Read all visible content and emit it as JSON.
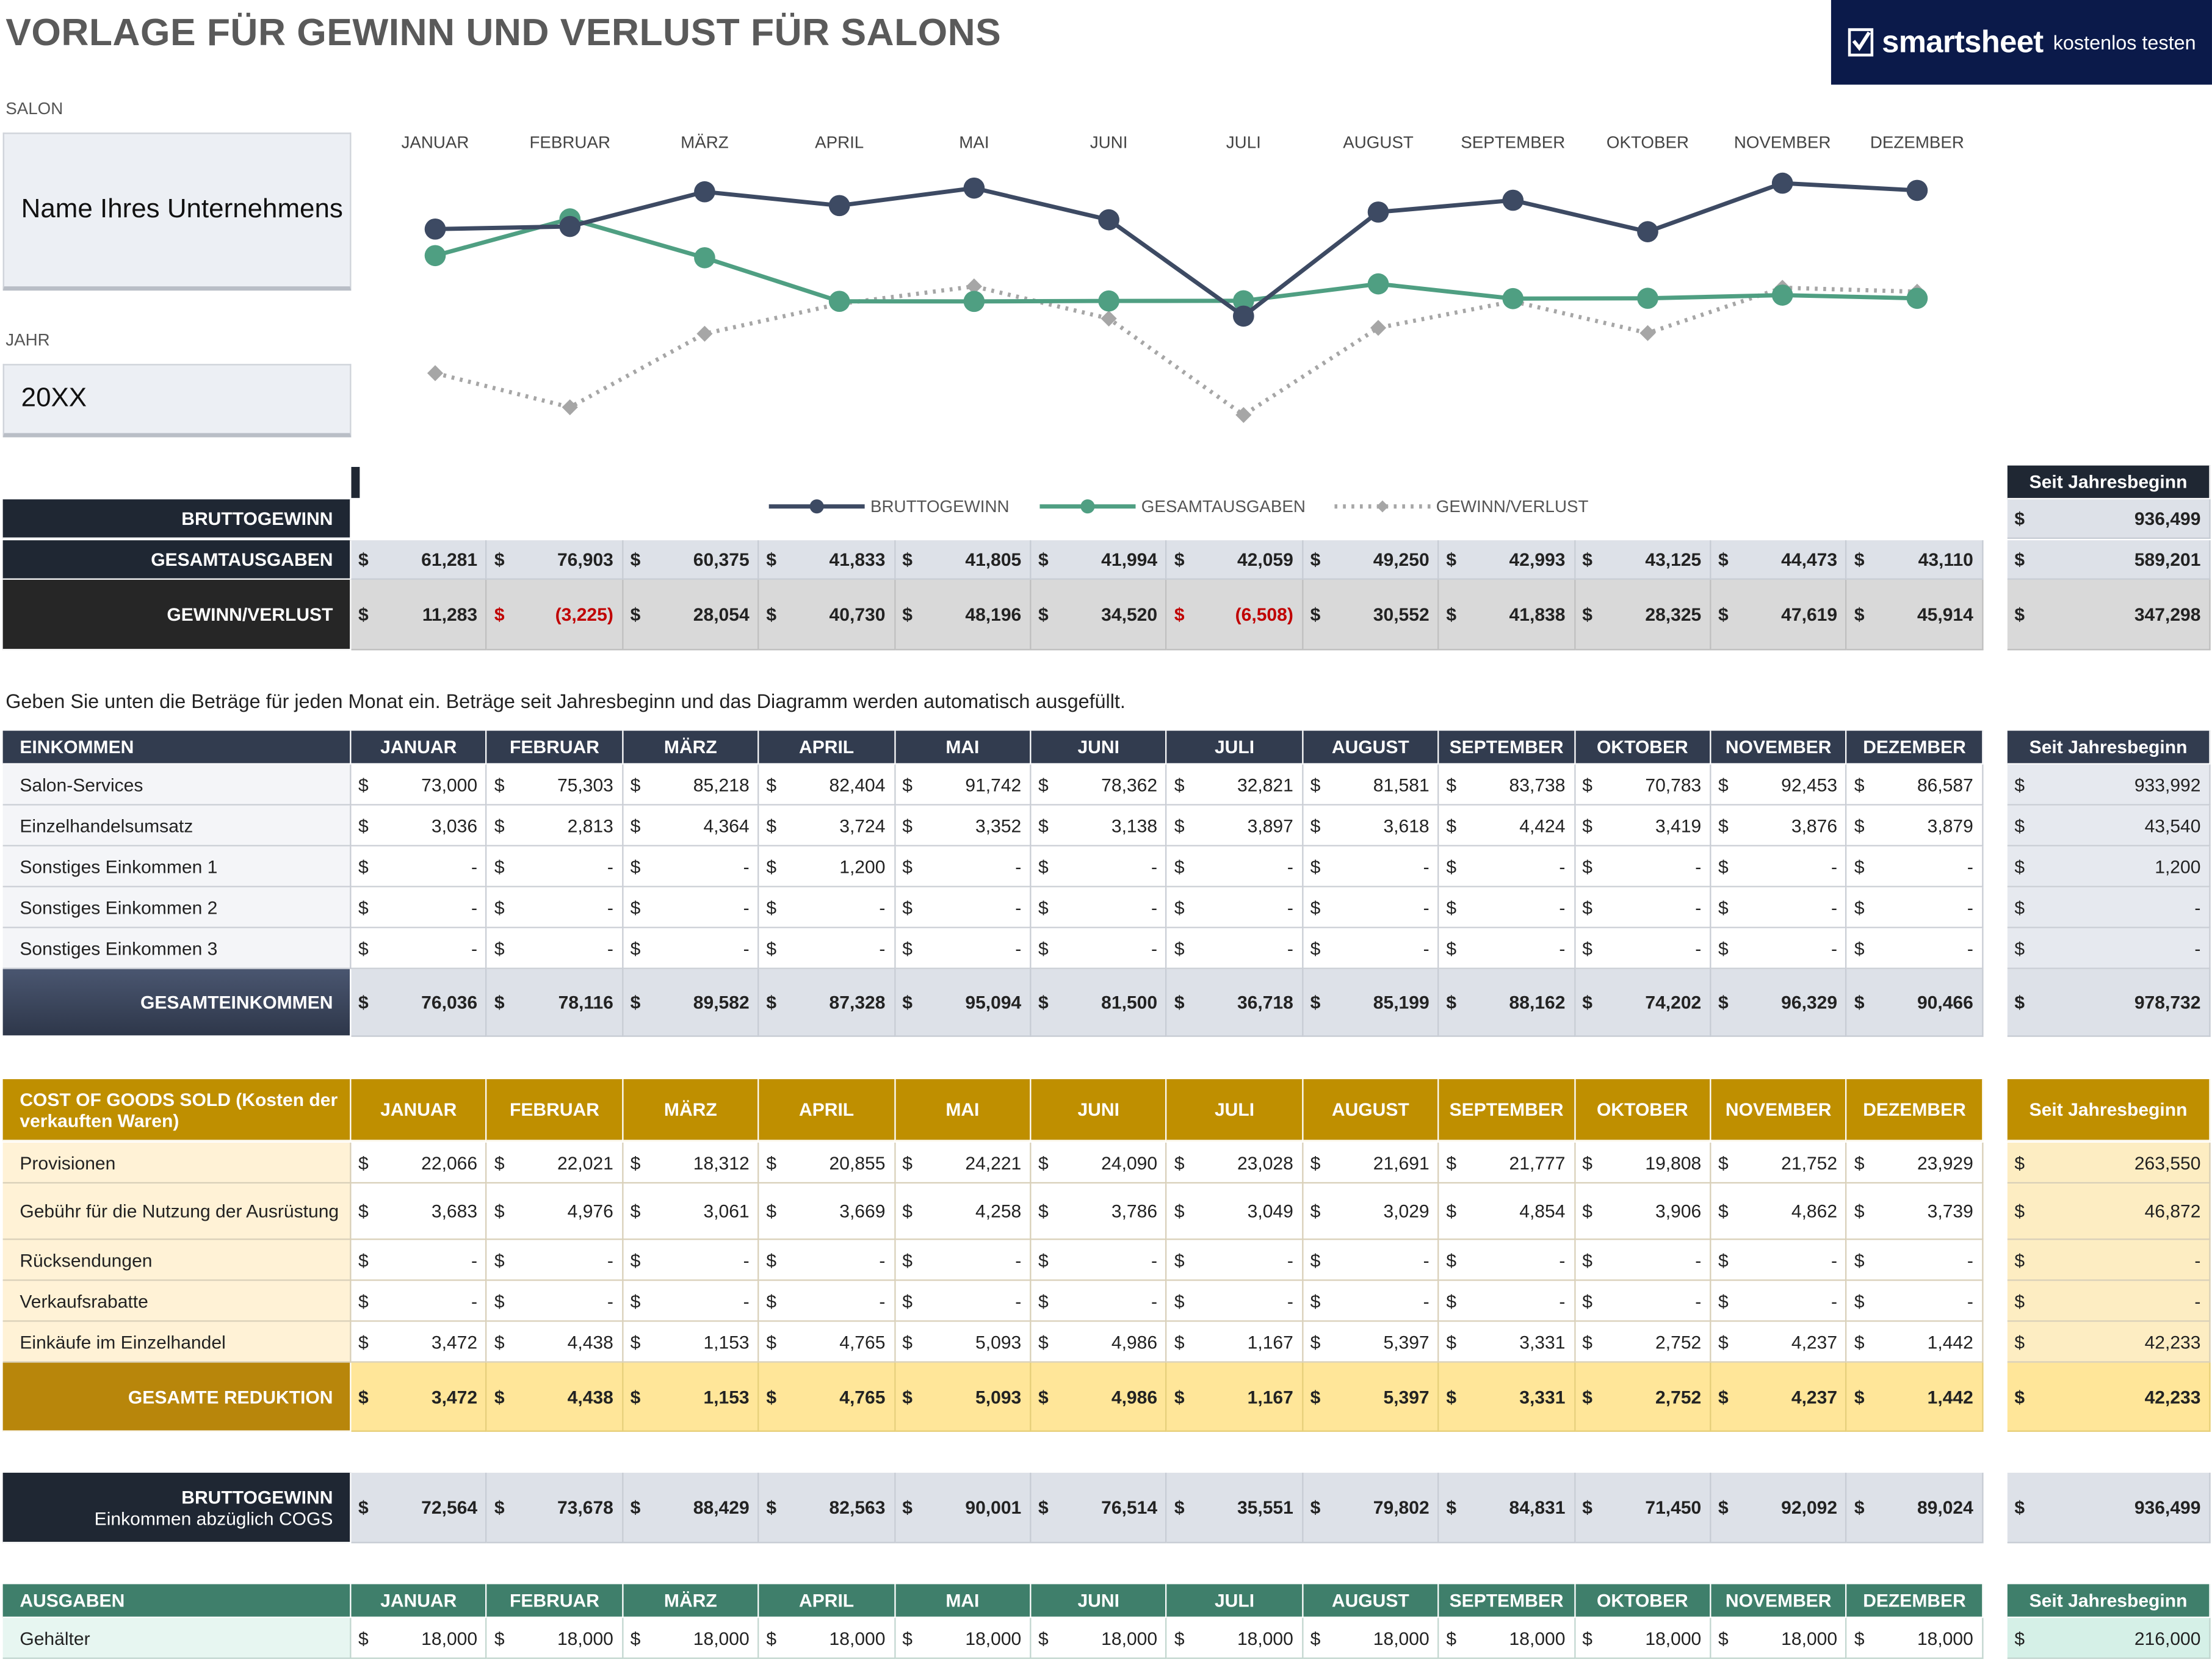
{
  "header": {
    "title": "VORLAGE FÜR GEWINN UND VERLUST FÜR SALONS",
    "brand_name": "smartsheet",
    "brand_cta": "kostenlos testen"
  },
  "fields": {
    "salon_label": "SALON",
    "salon_value": "Name Ihres Unternehmens",
    "year_label": "JAHR",
    "year_value": "20XX"
  },
  "months": [
    "JANUAR",
    "FEBRUAR",
    "MÄRZ",
    "APRIL",
    "MAI",
    "JUNI",
    "JULI",
    "AUGUST",
    "SEPTEMBER",
    "OKTOBER",
    "NOVEMBER",
    "DEZEMBER"
  ],
  "ytd_label": "Seit Jahresbeginn",
  "chart_data": {
    "type": "line",
    "categories": [
      "JANUAR",
      "FEBRUAR",
      "MÄRZ",
      "APRIL",
      "MAI",
      "JUNI",
      "JULI",
      "AUGUST",
      "SEPTEMBER",
      "OKTOBER",
      "NOVEMBER",
      "DEZEMBER"
    ],
    "series": [
      {
        "name": "BRUTTOGEWINN",
        "color": "#3d4a63",
        "style": "solid",
        "values": [
          72564,
          73678,
          88429,
          82563,
          90001,
          76514,
          35551,
          79802,
          84831,
          71450,
          92092,
          89024
        ]
      },
      {
        "name": "GESAMTAUSGABEN",
        "color": "#4f9f82",
        "style": "solid",
        "values": [
          61281,
          76903,
          60375,
          41833,
          41805,
          41994,
          42059,
          49250,
          42993,
          43125,
          44473,
          43110
        ]
      },
      {
        "name": "GEWINN/VERLUST",
        "color": "#a6a6a6",
        "style": "dotted",
        "values": [
          11283,
          -3225,
          28054,
          40730,
          48196,
          34520,
          -6508,
          30552,
          41838,
          28325,
          47619,
          45914
        ]
      }
    ],
    "legend": "bottom",
    "grid": false
  },
  "summary": {
    "rows": [
      {
        "label": "BRUTTOGEWINN",
        "values": [],
        "ytd": "936,499"
      },
      {
        "label": "GESAMTAUSGABEN",
        "values": [
          "61,281",
          "76,903",
          "60,375",
          "41,833",
          "41,805",
          "41,994",
          "42,059",
          "49,250",
          "42,993",
          "43,125",
          "44,473",
          "43,110"
        ],
        "ytd": "589,201"
      },
      {
        "label": "GEWINN/VERLUST",
        "values": [
          "11,283",
          "(3,225)",
          "28,054",
          "40,730",
          "48,196",
          "34,520",
          "(6,508)",
          "30,552",
          "41,838",
          "28,325",
          "47,619",
          "45,914"
        ],
        "ytd": "347,298"
      }
    ]
  },
  "note": "Geben Sie unten die Beträge für jeden Monat ein. Beträge seit Jahresbeginn und das Diagramm werden automatisch ausgefüllt.",
  "income": {
    "title": "EINKOMMEN",
    "rows": [
      {
        "label": "Salon-Services",
        "values": [
          "73,000",
          "75,303",
          "85,218",
          "82,404",
          "91,742",
          "78,362",
          "32,821",
          "81,581",
          "83,738",
          "70,783",
          "92,453",
          "86,587"
        ],
        "ytd": "933,992"
      },
      {
        "label": "Einzelhandelsumsatz",
        "values": [
          "3,036",
          "2,813",
          "4,364",
          "3,724",
          "3,352",
          "3,138",
          "3,897",
          "3,618",
          "4,424",
          "3,419",
          "3,876",
          "3,879"
        ],
        "ytd": "43,540"
      },
      {
        "label": "Sonstiges Einkommen 1",
        "values": [
          "-",
          "-",
          "-",
          "1,200",
          "-",
          "-",
          "-",
          "-",
          "-",
          "-",
          "-",
          "-"
        ],
        "ytd": "1,200"
      },
      {
        "label": "Sonstiges Einkommen 2",
        "values": [
          "-",
          "-",
          "-",
          "-",
          "-",
          "-",
          "-",
          "-",
          "-",
          "-",
          "-",
          "-"
        ],
        "ytd": "-"
      },
      {
        "label": "Sonstiges Einkommen 3",
        "values": [
          "-",
          "-",
          "-",
          "-",
          "-",
          "-",
          "-",
          "-",
          "-",
          "-",
          "-",
          "-"
        ],
        "ytd": "-"
      }
    ],
    "total": {
      "label": "GESAMTEINKOMMEN",
      "values": [
        "76,036",
        "78,116",
        "89,582",
        "87,328",
        "95,094",
        "81,500",
        "36,718",
        "85,199",
        "88,162",
        "74,202",
        "96,329",
        "90,466"
      ],
      "ytd": "978,732"
    }
  },
  "cogs": {
    "title": "COST OF GOODS SOLD (Kosten der verkauften Waren)",
    "rows": [
      {
        "label": "Provisionen",
        "values": [
          "22,066",
          "22,021",
          "18,312",
          "20,855",
          "24,221",
          "24,090",
          "23,028",
          "21,691",
          "21,777",
          "19,808",
          "21,752",
          "23,929"
        ],
        "ytd": "263,550"
      },
      {
        "label": "Gebühr für die Nutzung der Ausrüstung",
        "values": [
          "3,683",
          "4,976",
          "3,061",
          "3,669",
          "4,258",
          "3,786",
          "3,049",
          "3,029",
          "4,854",
          "3,906",
          "4,862",
          "3,739"
        ],
        "ytd": "46,872"
      },
      {
        "label": "Rücksendungen",
        "values": [
          "-",
          "-",
          "-",
          "-",
          "-",
          "-",
          "-",
          "-",
          "-",
          "-",
          "-",
          "-"
        ],
        "ytd": "-"
      },
      {
        "label": "Verkaufsrabatte",
        "values": [
          "-",
          "-",
          "-",
          "-",
          "-",
          "-",
          "-",
          "-",
          "-",
          "-",
          "-",
          "-"
        ],
        "ytd": "-"
      },
      {
        "label": "Einkäufe im Einzelhandel",
        "values": [
          "3,472",
          "4,438",
          "1,153",
          "4,765",
          "5,093",
          "4,986",
          "1,167",
          "5,397",
          "3,331",
          "2,752",
          "4,237",
          "1,442"
        ],
        "ytd": "42,233"
      }
    ],
    "total": {
      "label": "GESAMTE REDUKTION",
      "values": [
        "3,472",
        "4,438",
        "1,153",
        "4,765",
        "5,093",
        "4,986",
        "1,167",
        "5,397",
        "3,331",
        "2,752",
        "4,237",
        "1,442"
      ],
      "ytd": "42,233"
    }
  },
  "gross": {
    "label": "BRUTTOGEWINN",
    "sublabel": "Einkommen abzüglich COGS",
    "values": [
      "72,564",
      "73,678",
      "88,429",
      "82,563",
      "90,001",
      "76,514",
      "35,551",
      "79,802",
      "84,831",
      "71,450",
      "92,092",
      "89,024"
    ],
    "ytd": "936,499"
  },
  "expenses": {
    "title": "AUSGABEN",
    "rows": [
      {
        "label": "Gehälter",
        "values": [
          "18,000",
          "18,000",
          "18,000",
          "18,000",
          "18,000",
          "18,000",
          "18,000",
          "18,000",
          "18,000",
          "18,000",
          "18,000",
          "18,000"
        ],
        "ytd": "216,000"
      }
    ]
  },
  "currency": "$"
}
